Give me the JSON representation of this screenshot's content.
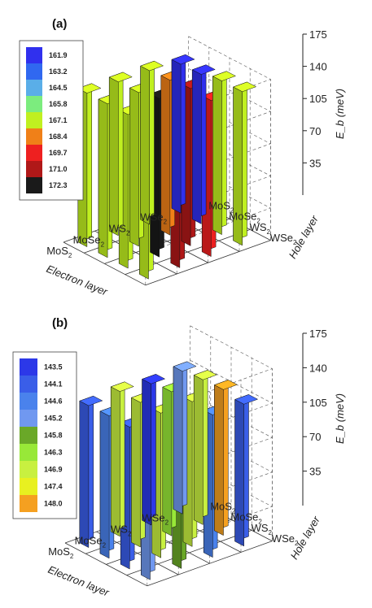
{
  "chart_data": [
    {
      "type": "bar3d",
      "title": "(a)",
      "z_label": "E_b (meV)",
      "z_ticks": [
        35,
        70,
        105,
        140,
        175
      ],
      "zlim": [
        0,
        175
      ],
      "x_label": "Electron layer",
      "y_label": "Hole layer",
      "x_categories": [
        "MoS2",
        "MoSe2",
        "WS2",
        "WSe2"
      ],
      "y_categories": [
        "MoS2",
        "MoSe2",
        "WS2",
        "WSe2"
      ],
      "legend_values": [
        "161.9",
        "163.2",
        "164.5",
        "165.8",
        "167.1",
        "168.4",
        "169.7",
        "171.0",
        "172.3"
      ],
      "legend_colors": [
        "#3030ee",
        "#3068f0",
        "#5aaee8",
        "#7cec7e",
        "#c0f020",
        "#f08018",
        "#ee2020",
        "#b01818",
        "#1a1a1a"
      ],
      "values": [
        [
          167.1,
          167.1,
          167.1,
          167.1
        ],
        [
          167.1,
          167.1,
          172.3,
          171.0
        ],
        [
          167.1,
          168.4,
          171.0,
          169.7
        ],
        [
          161.9,
          162.5,
          167.1,
          167.1
        ]
      ]
    },
    {
      "type": "bar3d",
      "title": "(b)",
      "z_label": "E_b (meV)",
      "z_ticks": [
        35,
        70,
        105,
        140,
        175
      ],
      "zlim": [
        0,
        175
      ],
      "x_label": "Electron layer",
      "y_label": "Hole layer",
      "x_categories": [
        "MoS2",
        "MoSe2",
        "WS2",
        "WSe2"
      ],
      "y_categories": [
        "MoS2",
        "MoSe2",
        "WS2",
        "WSe2"
      ],
      "legend_values": [
        "143.5",
        "144.1",
        "144.6",
        "145.2",
        "145.8",
        "146.3",
        "146.9",
        "147.4",
        "148.0"
      ],
      "legend_colors": [
        "#2c38e8",
        "#3a5ee8",
        "#4a82ec",
        "#7098f0",
        "#6aa828",
        "#98e838",
        "#c8f040",
        "#e8f020",
        "#f5a020"
      ],
      "values": [
        [
          144.1,
          144.6,
          144.1,
          145.2
        ],
        [
          147.1,
          146.9,
          146.9,
          145.8
        ],
        [
          143.5,
          146.3,
          147.1,
          144.6
        ],
        [
          144.9,
          147.1,
          148.0,
          144.1
        ]
      ]
    }
  ]
}
